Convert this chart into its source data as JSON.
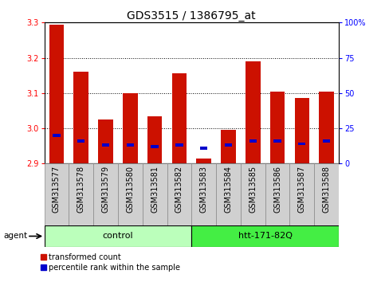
{
  "title": "GDS3515 / 1386795_at",
  "samples": [
    "GSM313577",
    "GSM313578",
    "GSM313579",
    "GSM313580",
    "GSM313581",
    "GSM313582",
    "GSM313583",
    "GSM313584",
    "GSM313585",
    "GSM313586",
    "GSM313587",
    "GSM313588"
  ],
  "transformed_count": [
    3.295,
    3.16,
    3.025,
    3.1,
    3.035,
    3.155,
    2.915,
    2.995,
    3.19,
    3.105,
    3.085,
    3.105
  ],
  "percentile_rank": [
    20,
    16,
    13,
    13,
    12,
    13,
    11,
    13,
    16,
    16,
    14,
    16
  ],
  "ylim_left": [
    2.9,
    3.3
  ],
  "ylim_right": [
    0,
    100
  ],
  "yticks_left": [
    2.9,
    3.0,
    3.1,
    3.2,
    3.3
  ],
  "yticks_right": [
    0,
    25,
    50,
    75,
    100
  ],
  "ytick_labels_right": [
    "0",
    "25",
    "50",
    "75",
    "100%"
  ],
  "groups": [
    {
      "label": "control",
      "start": 0,
      "end": 5,
      "color": "#bbffbb"
    },
    {
      "label": "htt-171-82Q",
      "start": 6,
      "end": 11,
      "color": "#44ee44"
    }
  ],
  "bar_color_red": "#cc1100",
  "bar_color_blue": "#0000cc",
  "bar_width": 0.6,
  "background_plot": "#ffffff",
  "background_label": "#d0d0d0",
  "agent_label": "agent",
  "legend_red": "transformed count",
  "legend_blue": "percentile rank within the sample",
  "title_fontsize": 10,
  "tick_fontsize": 7,
  "label_fontsize": 7,
  "group_fontsize": 8
}
